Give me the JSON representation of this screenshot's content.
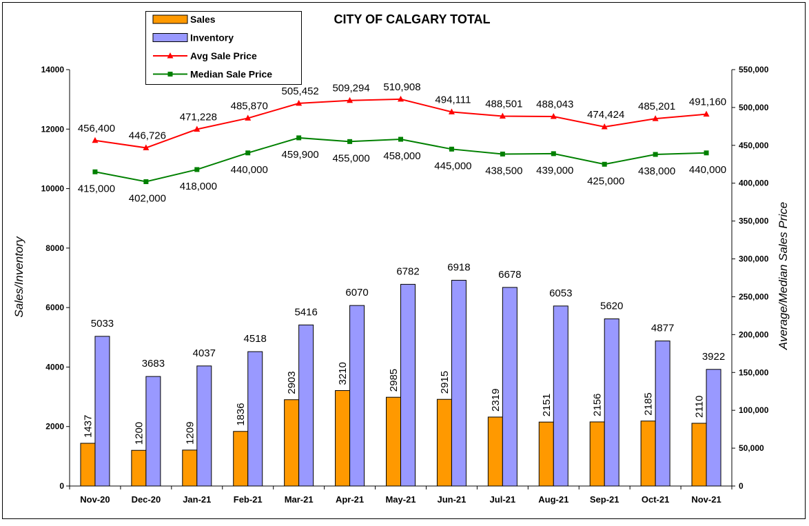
{
  "chart_data": {
    "type": "bar",
    "title": "CITY OF CALGARY TOTAL",
    "ylabel": "Sales/Inventory",
    "y2label": "Average/Median Sales Price",
    "ylim": [
      0,
      14000
    ],
    "y2lim": [
      0,
      550000
    ],
    "yticks": [
      "0",
      "2000",
      "4000",
      "6000",
      "8000",
      "10000",
      "12000",
      "14000"
    ],
    "y2ticks": [
      "0",
      "50,000",
      "100,000",
      "150,000",
      "200,000",
      "250,000",
      "300,000",
      "350,000",
      "400,000",
      "450,000",
      "500,000",
      "550,000"
    ],
    "categories": [
      "Nov-20",
      "Dec-20",
      "Jan-21",
      "Feb-21",
      "Mar-21",
      "Apr-21",
      "May-21",
      "Jun-21",
      "Jul-21",
      "Aug-21",
      "Sep-21",
      "Oct-21",
      "Nov-21"
    ],
    "series": [
      {
        "name": "Sales",
        "type": "bar",
        "axis": "left",
        "color": "#FF9900",
        "values": [
          1437,
          1200,
          1209,
          1836,
          2903,
          3210,
          2985,
          2915,
          2319,
          2151,
          2156,
          2185,
          2110
        ],
        "labels": [
          "1437",
          "1200",
          "1209",
          "1836",
          "2903",
          "3210",
          "2985",
          "2915",
          "2319",
          "2151",
          "2156",
          "2185",
          "2110"
        ]
      },
      {
        "name": "Inventory",
        "type": "bar",
        "axis": "left",
        "color": "#9999FF",
        "values": [
          5033,
          3683,
          4037,
          4518,
          5416,
          6070,
          6782,
          6918,
          6678,
          6053,
          5620,
          4877,
          3922
        ],
        "labels": [
          "5033",
          "3683",
          "4037",
          "4518",
          "5416",
          "6070",
          "6782",
          "6918",
          "6678",
          "6053",
          "5620",
          "4877",
          "3922"
        ]
      },
      {
        "name": "Avg Sale Price",
        "type": "line",
        "axis": "right",
        "color": "#FF0000",
        "marker": "triangle",
        "values": [
          456400,
          446726,
          471228,
          485870,
          505452,
          509294,
          510908,
          494111,
          488501,
          488043,
          474424,
          485201,
          491160
        ],
        "labels": [
          "456,400",
          "446,726",
          "471,228",
          "485,870",
          "505,452",
          "509,294",
          "510,908",
          "494,111",
          "488,501",
          "488,043",
          "474,424",
          "485,201",
          "491,160"
        ]
      },
      {
        "name": "Median Sale Price",
        "type": "line",
        "axis": "right",
        "color": "#008000",
        "marker": "square",
        "values": [
          415000,
          402000,
          418000,
          440000,
          459900,
          455000,
          458000,
          445000,
          438500,
          439000,
          425000,
          438000,
          440000
        ],
        "labels": [
          "415,000",
          "402,000",
          "418,000",
          "440,000",
          "459,900",
          "455,000",
          "458,000",
          "445,000",
          "438,500",
          "439,000",
          "425,000",
          "438,000",
          "440,000"
        ]
      }
    ],
    "legend": {
      "position": "top-left",
      "items": [
        "Sales",
        "Inventory",
        "Avg Sale Price",
        "Median Sale Price"
      ]
    },
    "grid": false
  }
}
